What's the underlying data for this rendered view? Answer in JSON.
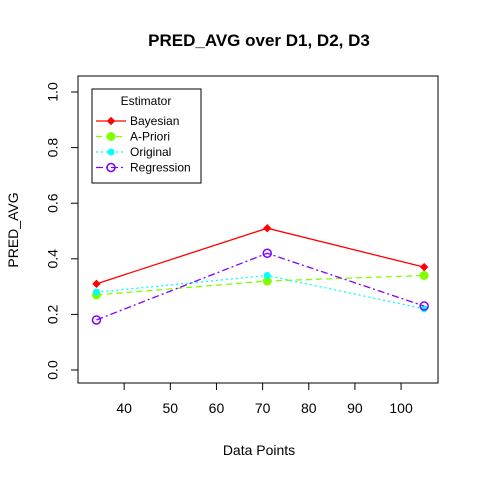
{
  "chart_data": {
    "type": "line",
    "title": "PRED_AVG over D1, D2, D3",
    "xlabel": "Data Points",
    "ylabel": "PRED_AVG",
    "xlim": [
      30,
      108
    ],
    "ylim": [
      0.0,
      1.0
    ],
    "xticks": [
      40,
      50,
      60,
      70,
      80,
      90,
      100
    ],
    "yticks": [
      "0.0",
      "0.2",
      "0.4",
      "0.6",
      "0.8",
      "1.0"
    ],
    "x": [
      34,
      71,
      105
    ],
    "legend": {
      "title": "Estimator",
      "position": "top-left"
    },
    "series": [
      {
        "name": "Bayesian",
        "values": [
          0.31,
          0.51,
          0.37
        ],
        "color": "#ff0000",
        "line_style": "solid",
        "marker": "filled-diamond"
      },
      {
        "name": "A-Priori",
        "values": [
          0.27,
          0.32,
          0.34
        ],
        "color": "#80ff00",
        "line_style": "dashed",
        "marker": "filled-circle"
      },
      {
        "name": "Original",
        "values": [
          0.28,
          0.34,
          0.22
        ],
        "color": "#00ffff",
        "line_style": "dotted",
        "marker": "filled-circle-small"
      },
      {
        "name": "Regression",
        "values": [
          0.18,
          0.42,
          0.23
        ],
        "color": "#8000ff",
        "line_style": "dashdot",
        "marker": "open-circle"
      }
    ],
    "grid": false
  }
}
